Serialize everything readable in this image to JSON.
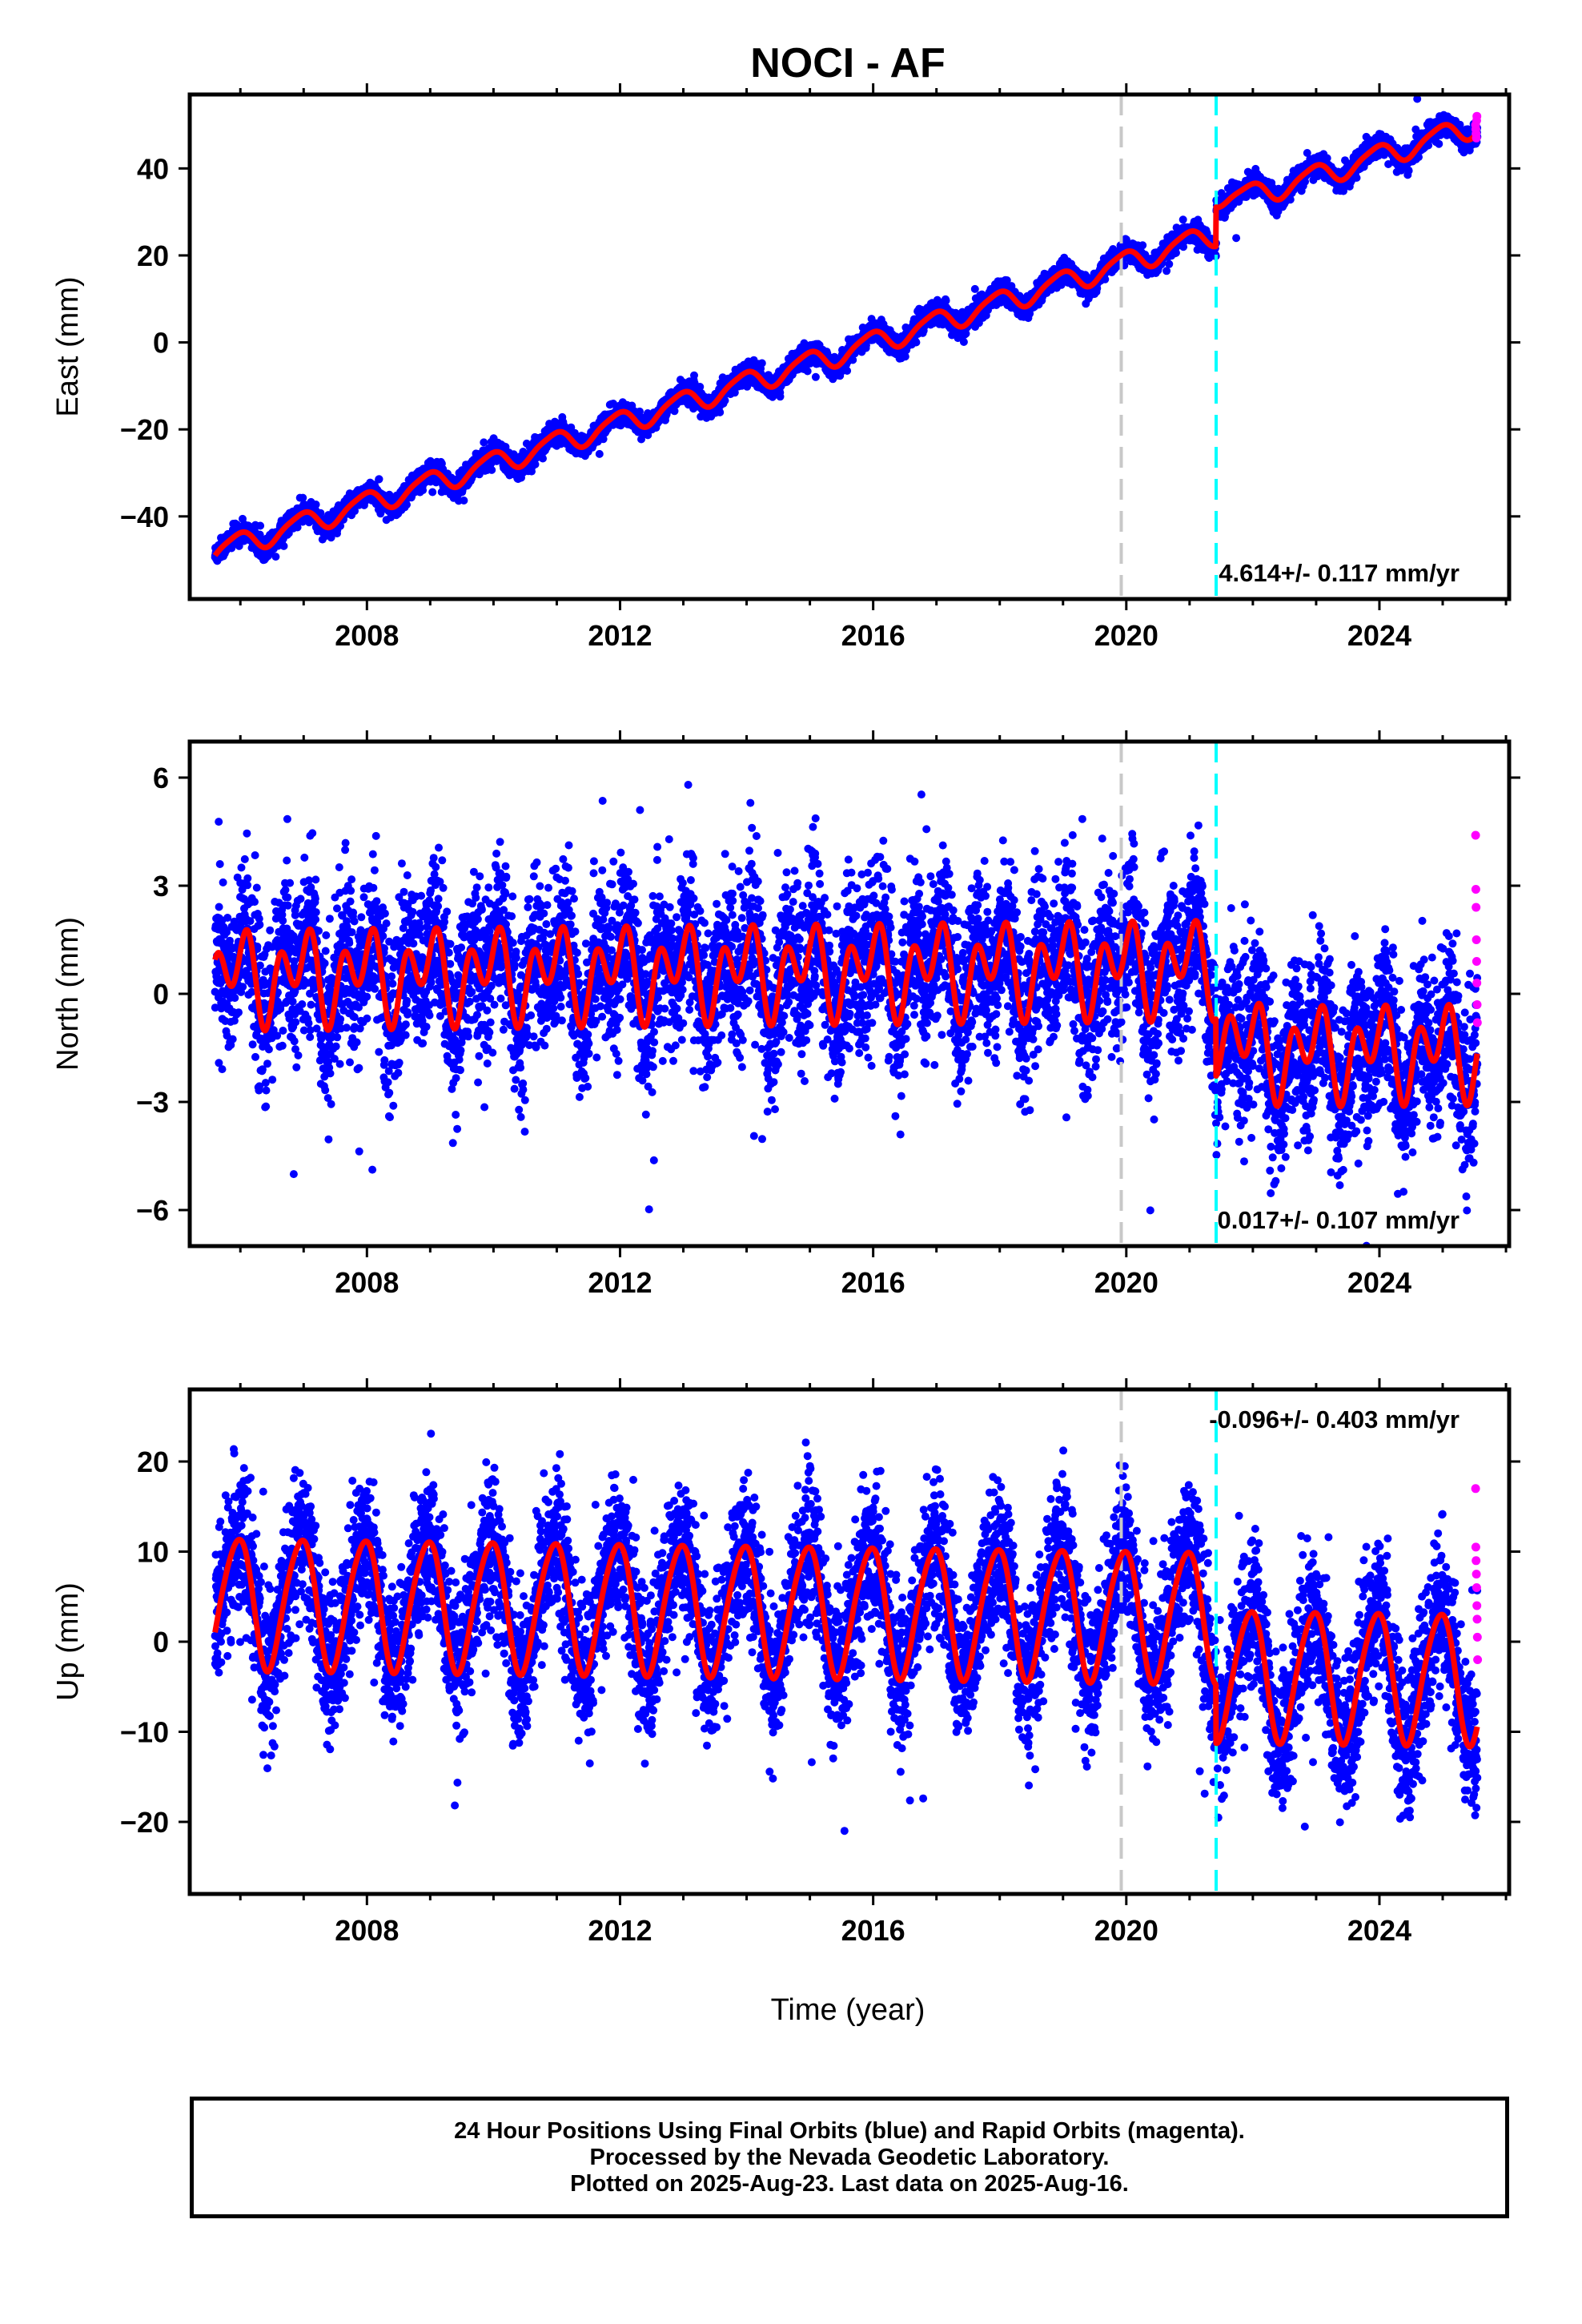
{
  "title": "NOCI - AF",
  "xlabel": "Time (year)",
  "colors": {
    "final_orbits": "#0000ff",
    "rapid_orbits": "#ff00ff",
    "model": "#ff0000",
    "equipment_change": "#c8c8c8",
    "earthquake": "#00ffff"
  },
  "footer": {
    "line1": "24 Hour Positions Using Final Orbits (blue) and Rapid Orbits (magenta).",
    "line2": "Processed by the Nevada Geodetic Laboratory.",
    "line3": "Plotted on 2025-Aug-23. Last data on 2025-Aug-16."
  },
  "chart_data": [
    {
      "type": "scatter",
      "component": "east",
      "ylabel": "East (mm)",
      "xlim": [
        2005.2,
        2026.05
      ],
      "ylim": [
        -59,
        57
      ],
      "yticks": [
        -40,
        -20,
        0,
        20,
        40
      ],
      "ytick_labels": [
        "−40",
        "−20",
        "0",
        "20",
        "40"
      ],
      "xticks": [
        2008,
        2012,
        2016,
        2020,
        2024
      ],
      "xtick_labels": [
        "2008",
        "2012",
        "2016",
        "2020",
        "2024"
      ],
      "rate_text": "4.614+/- 0.117 mm/yr",
      "rate_position": "bottom-right",
      "equipment_change_year": 2019.92,
      "earthquake_year": 2021.42,
      "model": {
        "start": 2005.6,
        "end": 2025.55,
        "value_at_start": -48,
        "rate_mm_per_yr": 4.614,
        "annual_amplitude": 2.5,
        "semiannual_amplitude": 0.5,
        "offset_at_earthquake": 6,
        "postseismic_amplitude": 3
      },
      "scatter_noise": 1.2,
      "rapid_points": [
        50,
        49,
        48,
        47,
        51,
        52
      ]
    },
    {
      "type": "scatter",
      "component": "north",
      "ylabel": "North (mm)",
      "xlim": [
        2005.2,
        2026.05
      ],
      "ylim": [
        -7,
        7
      ],
      "yticks": [
        -6,
        -3,
        0,
        3,
        6
      ],
      "ytick_labels": [
        "−6",
        "−3",
        "0",
        "3",
        "6"
      ],
      "xticks": [
        2008,
        2012,
        2016,
        2020,
        2024
      ],
      "xtick_labels": [
        "2008",
        "2012",
        "2016",
        "2020",
        "2024"
      ],
      "rate_text": "0.017+/- 0.107 mm/yr",
      "rate_position": "bottom-right",
      "equipment_change_year": 2019.92,
      "earthquake_year": 2021.42,
      "model": {
        "start": 2005.6,
        "end": 2025.55,
        "value_at_start": 0.5,
        "rate_mm_per_yr": 0.017,
        "annual_amplitude": 0.7,
        "semiannual_amplitude": 0.9,
        "offset_at_earthquake": -2.4,
        "postseismic_amplitude": 0.8
      },
      "scatter_noise": 1.1,
      "rapid_points": [
        4.4,
        2.9,
        2.4,
        1.5,
        0.9,
        0.3,
        -0.3,
        -0.8
      ]
    },
    {
      "type": "scatter",
      "component": "up",
      "ylabel": "Up (mm)",
      "xlim": [
        2005.2,
        2026.05
      ],
      "ylim": [
        -28,
        28
      ],
      "yticks": [
        -20,
        -10,
        0,
        10,
        20
      ],
      "ytick_labels": [
        "−20",
        "−10",
        "0",
        "10",
        "20"
      ],
      "xticks": [
        2008,
        2012,
        2016,
        2020,
        2024
      ],
      "xtick_labels": [
        "2008",
        "2012",
        "2016",
        "2020",
        "2024"
      ],
      "rate_text": "-0.096+/- 0.403 mm/yr",
      "rate_position": "top-right",
      "equipment_change_year": 2019.92,
      "earthquake_year": 2021.42,
      "model": {
        "start": 2005.6,
        "end": 2025.55,
        "value_at_start": 4.5,
        "rate_mm_per_yr": -0.096,
        "annual_amplitude": 7.2,
        "semiannual_amplitude": 0.8,
        "offset_at_earthquake": -6.5,
        "postseismic_amplitude": 0
      },
      "scatter_noise": 4.0,
      "rapid_points": [
        17,
        10.5,
        9,
        7.5,
        6,
        4,
        2.5,
        0.5,
        -2
      ]
    }
  ]
}
